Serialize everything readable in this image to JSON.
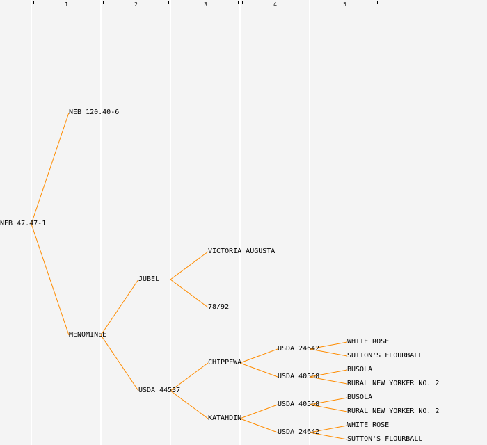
{
  "generations": [
    "1",
    "2",
    "3",
    "4",
    "5"
  ],
  "line_color": "#ff8c00",
  "tree": {
    "name": "NEB 47.47-1",
    "children": [
      {
        "name": "NEB 120.40-6",
        "children": []
      },
      {
        "name": "MENOMINEE",
        "children": [
          {
            "name": "JUBEL",
            "children": [
              {
                "name": "VICTORIA AUGUSTA",
                "children": []
              },
              {
                "name": "78/92",
                "children": []
              }
            ]
          },
          {
            "name": "USDA 44537",
            "children": [
              {
                "name": "CHIPPEWA",
                "children": [
                  {
                    "name": "USDA 24642",
                    "children": [
                      {
                        "name": "WHITE ROSE",
                        "children": []
                      },
                      {
                        "name": "SUTTON'S FLOURBALL",
                        "children": []
                      }
                    ]
                  },
                  {
                    "name": "USDA 40568",
                    "children": [
                      {
                        "name": "BUSOLA",
                        "children": []
                      },
                      {
                        "name": "RURAL NEW YORKER NO. 2",
                        "children": []
                      }
                    ]
                  }
                ]
              },
              {
                "name": "KATAHDIN",
                "children": [
                  {
                    "name": "USDA 40568",
                    "children": [
                      {
                        "name": "BUSOLA",
                        "children": []
                      },
                      {
                        "name": "RURAL NEW YORKER NO. 2",
                        "children": []
                      }
                    ]
                  },
                  {
                    "name": "USDA 24642",
                    "children": [
                      {
                        "name": "WHITE ROSE",
                        "children": []
                      },
                      {
                        "name": "SUTTON'S FLOURBALL",
                        "children": []
                      }
                    ]
                  }
                ]
              }
            ]
          }
        ]
      }
    ]
  }
}
